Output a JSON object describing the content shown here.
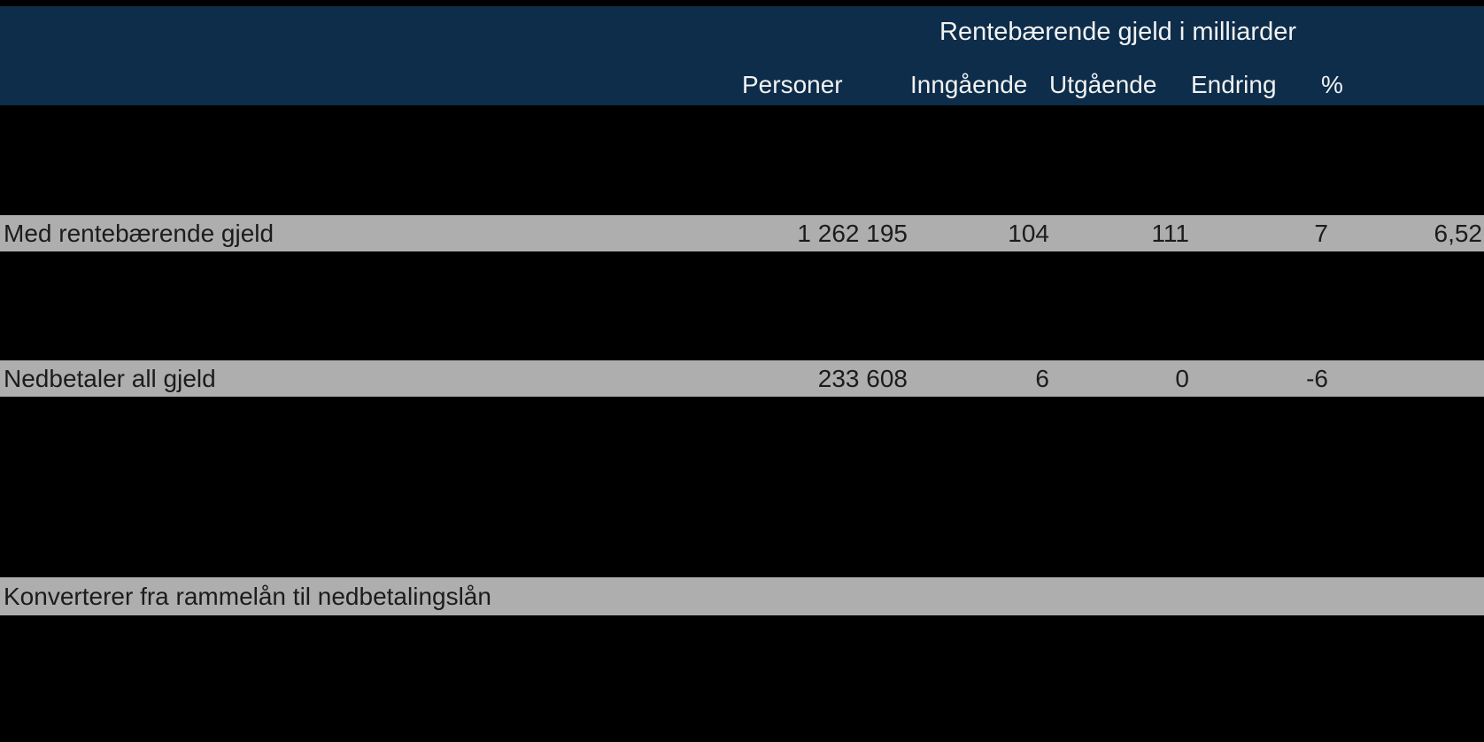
{
  "chart_data": {
    "type": "table",
    "title": "Rentebærende gjeld i milliarder",
    "columns": [
      "Personer",
      "Inngående",
      "Utgående",
      "Endring",
      "%"
    ],
    "rows": [
      [
        "Med rentebærende gjeld",
        "1 262 195",
        "104",
        "111",
        "7",
        "6,52"
      ],
      [
        "Nedbetaler all gjeld",
        "233 608",
        "6",
        "0",
        "-6",
        ""
      ],
      [
        "Konverterer fra rammelån til nedbetalingslån",
        "",
        "",
        "",
        "",
        ""
      ]
    ],
    "layout": {
      "header_position": "top",
      "value_alignment": "right",
      "label_alignment": "left",
      "grid": "off"
    }
  },
  "colors": {
    "background": "#000000",
    "header_bg": "#0d2d4a",
    "header_text": "#f2f2f2",
    "row_bg": "#aeaeae",
    "row_text": "#1c1c1c"
  }
}
